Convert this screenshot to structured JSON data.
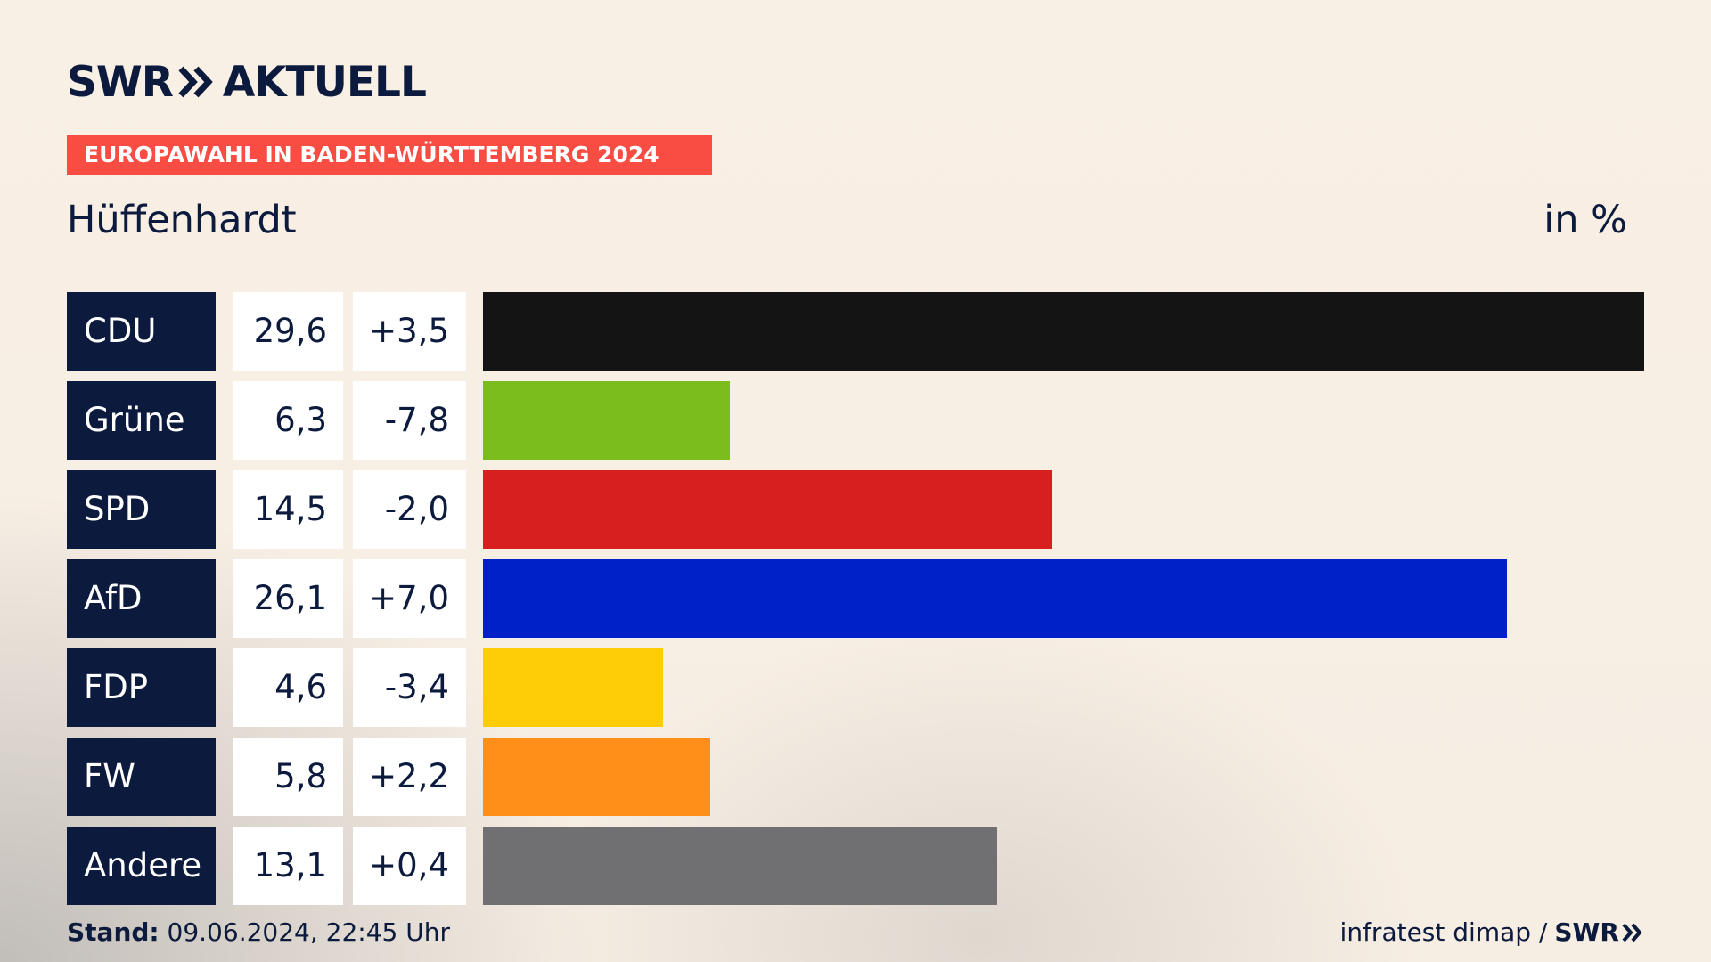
{
  "header": {
    "logo_text_left": "SWR",
    "logo_text_right": "AKTUELL",
    "ribbon": "EUROPAWAHL IN BADEN-WÜRTTEMBERG 2024",
    "place": "Hüffenhardt",
    "unit": "in %"
  },
  "colors": {
    "navy": "#0c1b3d",
    "ribbon": "#f94d43"
  },
  "chart_data": {
    "type": "bar",
    "title": "Hüffenhardt",
    "ylabel": "in %",
    "categories": [
      "CDU",
      "Grüne",
      "SPD",
      "AfD",
      "FDP",
      "FW",
      "Andere"
    ],
    "values": [
      29.6,
      6.3,
      14.5,
      26.1,
      4.6,
      5.8,
      13.1
    ],
    "value_labels": [
      "29,6",
      "6,3",
      "14,5",
      "26,1",
      "4,6",
      "5,8",
      "13,1"
    ],
    "changes": [
      3.5,
      -7.8,
      -2.0,
      7.0,
      -3.4,
      2.2,
      0.4
    ],
    "change_labels": [
      "+3,5",
      "-7,8",
      "-2,0",
      "+7,0",
      "-3,4",
      "+2,2",
      "+0,4"
    ],
    "bar_colors": [
      "#141414",
      "#7abd1c",
      "#d81f1f",
      "#0020c8",
      "#ffcc08",
      "#ff8f18",
      "#707073"
    ],
    "ylim": [
      0,
      29.6
    ]
  },
  "footer": {
    "stand_label": "Stand:",
    "stand_value": "09.06.2024, 22:45 Uhr",
    "source": "infratest dimap /",
    "source_brand": "SWR"
  }
}
